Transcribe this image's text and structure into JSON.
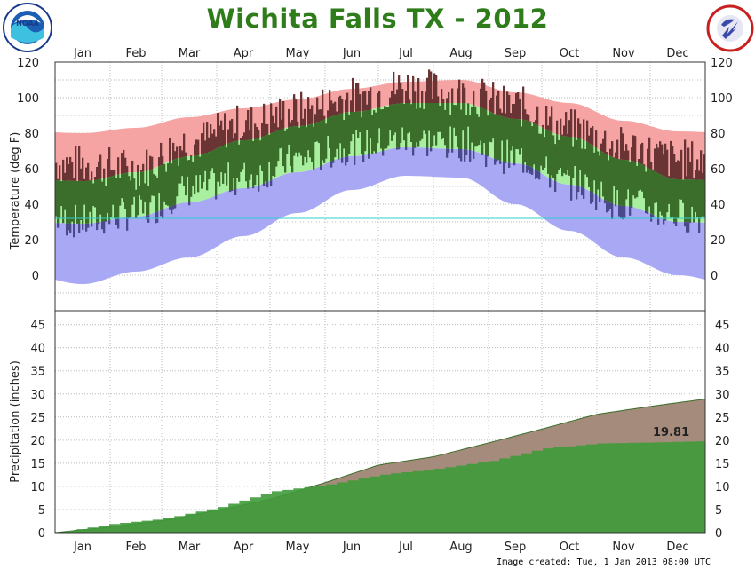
{
  "title": "Wichita Falls TX - 2012",
  "footer": "Image created: Tue, 1 Jan 2013 08:00 UTC",
  "logos": {
    "left": {
      "name": "noaa-logo",
      "text": "NOAA"
    },
    "right": {
      "name": "nws-logo",
      "text": "NATIONAL WEATHER SERVICE"
    }
  },
  "colors": {
    "record_band": "#f5a3a3",
    "normal_band": "#a8f0a0",
    "record_low_band": "#a8a8f5",
    "normal_fill": "#4a8a3a",
    "actual_dark": "#6b3434",
    "actual_green": "#3a6e2a",
    "actual_blue": "#4a4a8a",
    "precip_normal": "#a58b7b",
    "precip_actual": "#3f9a3a",
    "freeze_line": "#33cccc",
    "title": "#2e7d1a"
  },
  "chart_data": [
    {
      "type": "area",
      "ylabel": "Temperature (deg F)",
      "ylim": [
        -20,
        120
      ],
      "yticks": [
        0,
        20,
        40,
        60,
        80,
        100,
        120
      ],
      "months": [
        "Jan",
        "Feb",
        "Mar",
        "Apr",
        "May",
        "Jun",
        "Jul",
        "Aug",
        "Sep",
        "Oct",
        "Nov",
        "Dec"
      ],
      "grid": true,
      "freeze_line": 32,
      "series": [
        {
          "key": "record_high",
          "values_by_month": [
            80,
            83,
            89,
            94,
            99,
            105,
            109,
            110,
            103,
            97,
            87,
            81
          ]
        },
        {
          "key": "normal_high",
          "values_by_month": [
            53,
            58,
            67,
            76,
            84,
            92,
            97,
            97,
            88,
            78,
            65,
            54
          ]
        },
        {
          "key": "normal_low",
          "values_by_month": [
            29,
            33,
            41,
            49,
            58,
            67,
            72,
            71,
            63,
            51,
            39,
            30
          ]
        },
        {
          "key": "record_low",
          "values_by_month": [
            -5,
            2,
            10,
            22,
            35,
            48,
            56,
            55,
            40,
            25,
            10,
            0
          ]
        },
        {
          "key": "actual_high",
          "values_by_month": [
            62,
            60,
            75,
            85,
            92,
            100,
            106,
            102,
            95,
            82,
            72,
            65
          ]
        },
        {
          "key": "actual_low",
          "values_by_month": [
            30,
            35,
            48,
            55,
            65,
            72,
            76,
            74,
            66,
            52,
            40,
            34
          ]
        }
      ]
    },
    {
      "type": "area",
      "ylabel": "Precipitation (inches)",
      "ylim": [
        0,
        48
      ],
      "yticks": [
        0,
        5,
        10,
        15,
        20,
        25,
        30,
        35,
        40,
        45
      ],
      "months": [
        "Jan",
        "Feb",
        "Mar",
        "Apr",
        "May",
        "Jun",
        "Jul",
        "Aug",
        "Sep",
        "Oct",
        "Nov",
        "Dec"
      ],
      "series": [
        {
          "key": "normal_cumulative",
          "values_by_month_end": [
            1.2,
            2.6,
            4.8,
            7.2,
            10.8,
            14.6,
            16.4,
            19.4,
            22.4,
            25.6,
            27.3,
            28.9
          ]
        },
        {
          "key": "actual_cumulative",
          "values_by_month_end": [
            1.9,
            3.0,
            5.5,
            8.9,
            10.4,
            12.5,
            13.8,
            15.5,
            18.2,
            19.3,
            19.5,
            19.81
          ]
        }
      ],
      "annotation": "19.81"
    }
  ]
}
